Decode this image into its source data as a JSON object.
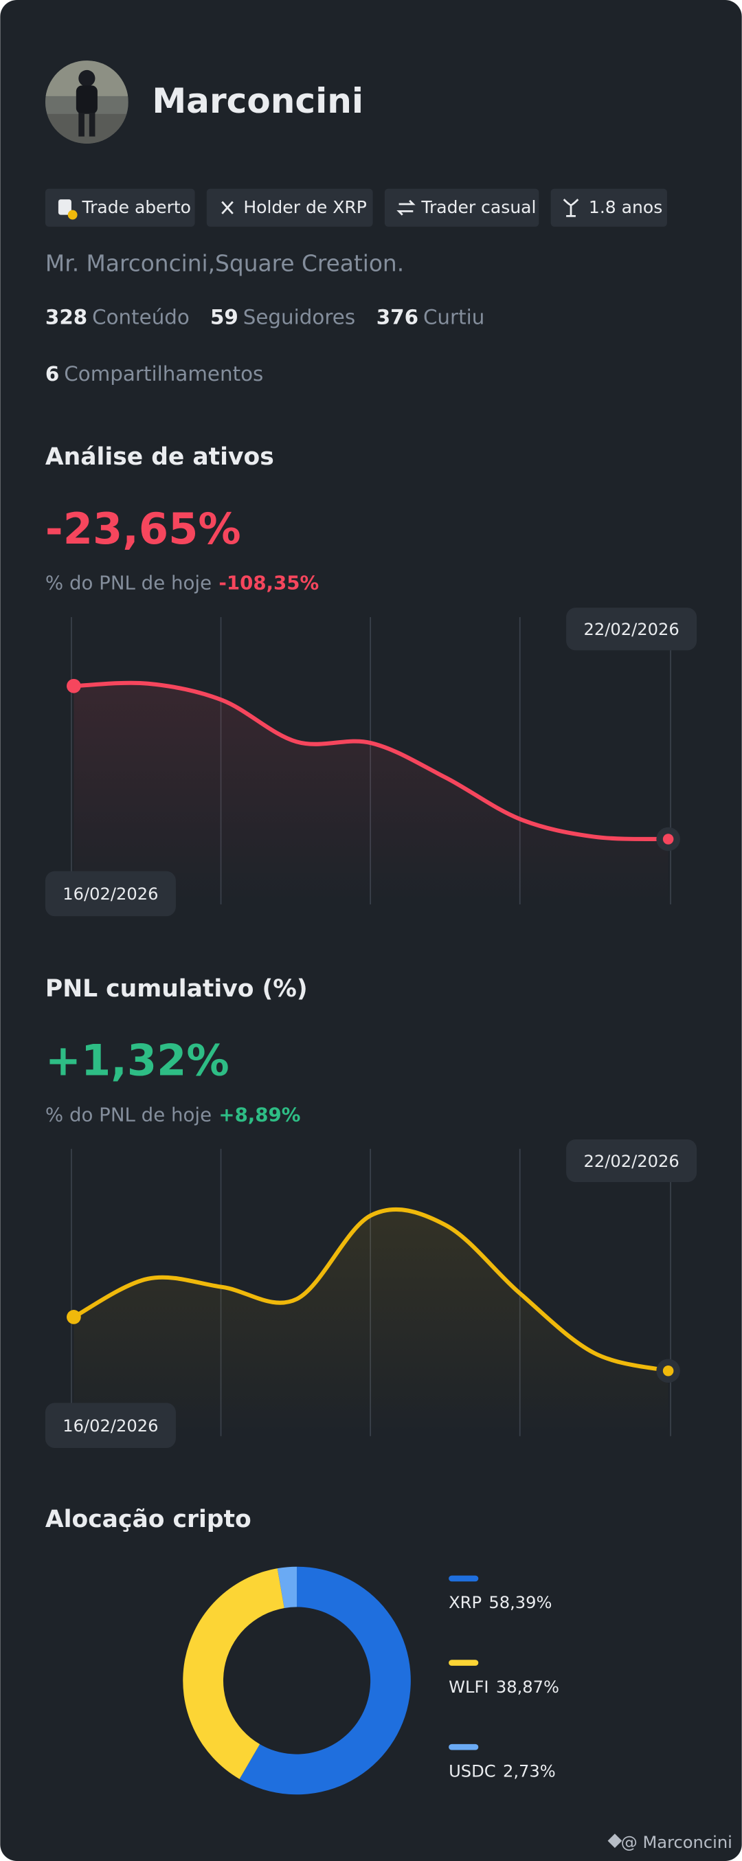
{
  "profile": {
    "name": "Marconcini",
    "tags": [
      "Trade aberto",
      "Holder de XRP",
      "Trader casual",
      "1.8 anos"
    ],
    "bio": "Mr. Marconcini,Square Creation.",
    "stats": [
      {
        "value": 328,
        "label": "Conteúdo"
      },
      {
        "value": 59,
        "label": "Seguidores"
      },
      {
        "value": 376,
        "label": "Curtiu"
      },
      {
        "value": 6,
        "label": "Compartilhamentos"
      }
    ]
  },
  "chart_data": [
    {
      "type": "line",
      "title": "Análise de ativos",
      "headline": "-23,65%",
      "subtitle": "% do PNL de hoje",
      "today": "-108,35%",
      "categories": [
        "16/02/2026",
        null,
        null,
        null,
        null,
        null,
        null,
        null,
        "22/02/2026"
      ],
      "series": [
        {
          "color": "#f6465d",
          "values": [
            222,
            224,
            210,
            175,
            174,
            145,
            110,
            95,
            93
          ]
        }
      ]
    },
    {
      "type": "line",
      "title": "PNL cumulativo (%)",
      "headline": "+1,32%",
      "subtitle": "% do PNL de hoje",
      "today": "+8,89%",
      "categories": [
        "16/02/2026",
        null,
        null,
        null,
        null,
        null,
        null,
        null,
        "22/02/2026"
      ],
      "series": [
        {
          "color": "#f0b90b",
          "values": [
            140,
            172,
            165,
            155,
            225,
            217,
            160,
            110,
            95
          ]
        }
      ]
    },
    {
      "type": "pie",
      "title": "Alocação cripto",
      "categories": [
        "XRP",
        "WLFI",
        "USDC"
      ],
      "values": [
        58.39,
        38.87,
        2.73
      ],
      "value_labels": [
        "58,39%",
        "38,87%",
        "2,73%"
      ],
      "colors": [
        "#1f6fde",
        "#fcd535",
        "#6aaaf4"
      ]
    }
  ],
  "footer": "@ Marconcini"
}
